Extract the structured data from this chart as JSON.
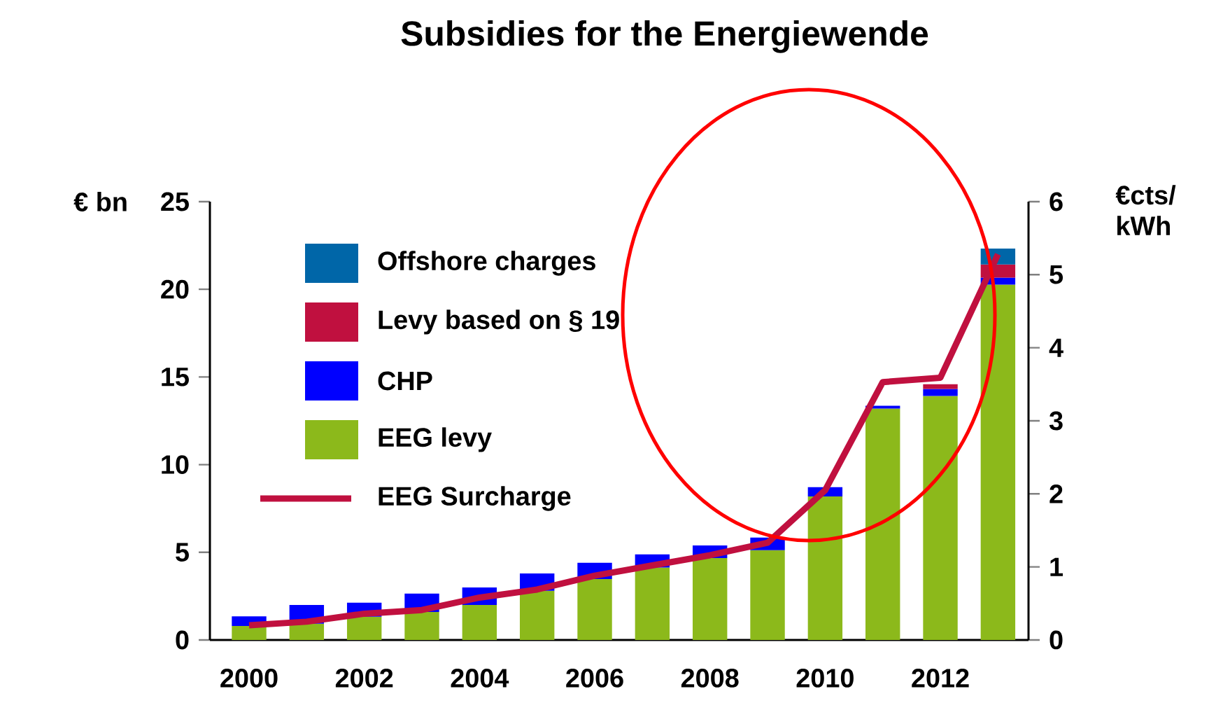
{
  "chart_data": {
    "type": "bar",
    "title": "Subsidies for the Energiewende",
    "ylabel": "€ bn",
    "y2label": "€cts/ kWh",
    "categories": [
      "2000",
      null,
      "2002",
      null,
      "2004",
      null,
      "2006",
      null,
      "2008",
      null,
      "2010",
      null,
      "2012",
      null
    ],
    "stacked": true,
    "series": [
      {
        "name": "EEG levy",
        "color": "#8cb91b",
        "values": [
          0.8,
          0.93,
          1.33,
          1.6,
          2.0,
          2.8,
          3.47,
          4.13,
          4.67,
          5.12,
          8.19,
          13.2,
          13.92,
          20.27
        ]
      },
      {
        "name": "CHP",
        "color": "#0000ff",
        "values": [
          0.55,
          1.07,
          0.8,
          1.04,
          0.99,
          0.99,
          0.93,
          0.75,
          0.72,
          0.72,
          0.53,
          0.16,
          0.4,
          0.4
        ]
      },
      {
        "name": "Levy based on  § 19",
        "color": "#c0103f",
        "values": [
          null,
          null,
          null,
          null,
          null,
          null,
          null,
          null,
          null,
          null,
          null,
          null,
          0.27,
          0.74
        ]
      },
      {
        "name": "Offshore charges",
        "color": "#0066a8",
        "values": [
          null,
          null,
          null,
          null,
          null,
          null,
          null,
          null,
          null,
          null,
          null,
          null,
          null,
          0.91
        ]
      },
      {
        "name": "EEG Surcharge",
        "type": "line",
        "axis": "y2",
        "color": "#c0103f",
        "values": [
          0.2,
          0.25,
          0.36,
          0.41,
          0.58,
          0.69,
          0.88,
          1.02,
          1.16,
          1.33,
          2.05,
          3.53,
          3.59,
          5.28
        ]
      }
    ],
    "ylim": [
      0,
      25
    ],
    "yticks": [
      0,
      5,
      10,
      15,
      20,
      25
    ],
    "y2lim": [
      0,
      6
    ],
    "y2ticks": [
      0,
      1,
      2,
      3,
      4,
      5,
      6
    ],
    "legend": "top left"
  }
}
